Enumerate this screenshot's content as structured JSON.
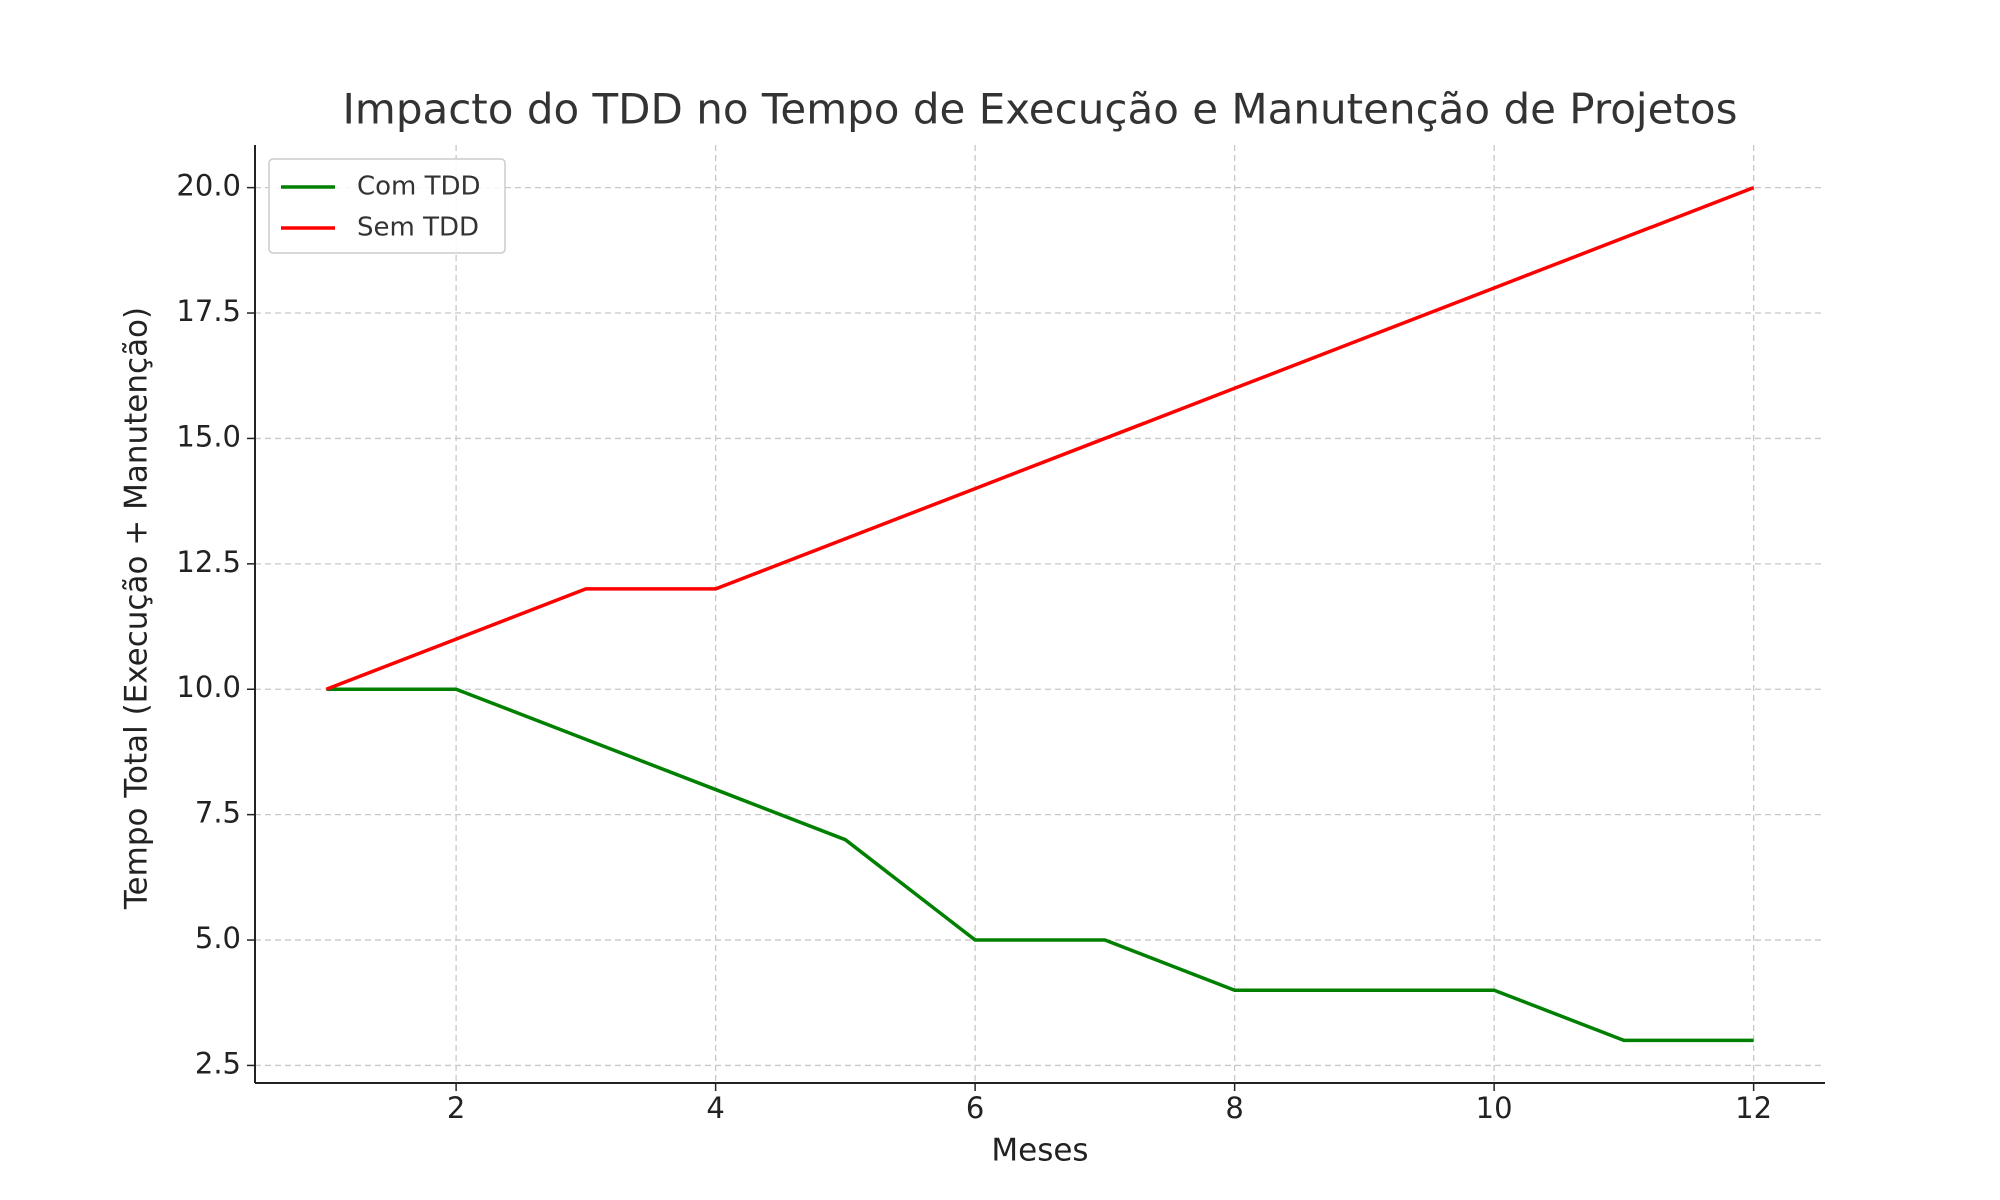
{
  "chart_data": {
    "type": "line",
    "title": "Impacto do TDD no Tempo de Execução e Manutenção de Projetos",
    "x_label": "Meses",
    "y_label": "Tempo Total (Execução + Manutenção)",
    "x": [
      1,
      2,
      3,
      4,
      5,
      6,
      7,
      8,
      9,
      10,
      11,
      12
    ],
    "series": [
      {
        "name": "Com TDD",
        "color": "#008000",
        "values": [
          10,
          10,
          9,
          8,
          7,
          5,
          5,
          4,
          4,
          4,
          3,
          3
        ]
      },
      {
        "name": "Sem TDD",
        "color": "#ff0000",
        "values": [
          10,
          11,
          12,
          12,
          13,
          14,
          15,
          16,
          17,
          18,
          19,
          20
        ]
      }
    ],
    "xlim": [
      0.45,
      12.55
    ],
    "ylim": [
      2.15,
      20.85
    ],
    "xticks": [
      2,
      4,
      6,
      8,
      10,
      12
    ],
    "yticks": [
      {
        "value": 2.5,
        "label": "2.5"
      },
      {
        "value": 5,
        "label": "5.0"
      },
      {
        "value": 7.5,
        "label": "7.5"
      },
      {
        "value": 10,
        "label": "10.0"
      },
      {
        "value": 12.5,
        "label": "12.5"
      },
      {
        "value": 15,
        "label": "15.0"
      },
      {
        "value": 17.5,
        "label": "17.5"
      },
      {
        "value": 20,
        "label": "20.0"
      }
    ],
    "grid": true,
    "legend": "upper left"
  }
}
